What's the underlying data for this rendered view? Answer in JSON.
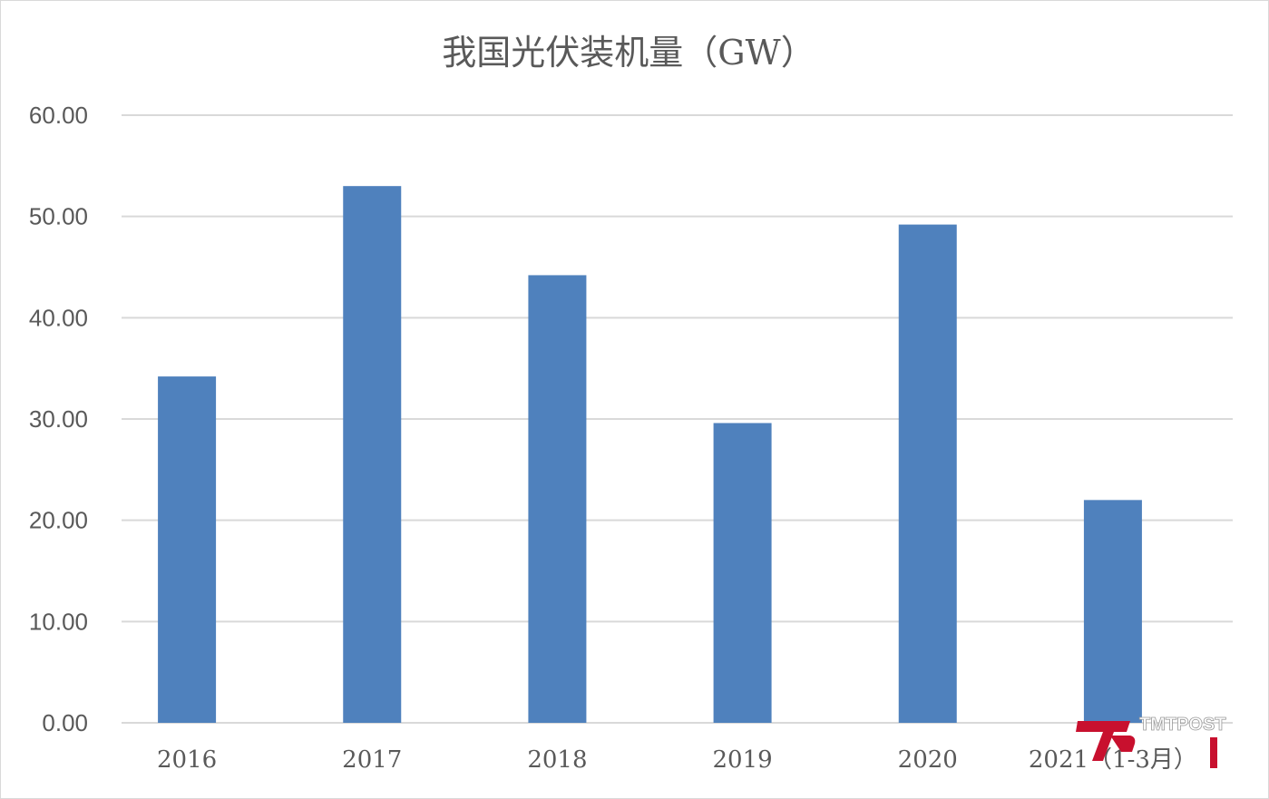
{
  "chart_data": {
    "type": "bar",
    "title": "我国光伏装机量（GW）",
    "xlabel": "",
    "ylabel": "",
    "categories": [
      "2016",
      "2017",
      "2018",
      "2019",
      "2020",
      "2021（1-3月）"
    ],
    "values": [
      34.2,
      53.0,
      44.2,
      29.6,
      49.2,
      22.0
    ],
    "ylim": [
      0,
      60
    ],
    "yticks": [
      "0.00",
      "10.00",
      "20.00",
      "30.00",
      "40.00",
      "50.00",
      "60.00"
    ],
    "grid": true,
    "legend": "none",
    "bar_color": "#4f81bd",
    "grid_color": "#d9d9d9"
  },
  "watermark": {
    "text": "TMTPOST",
    "brand_color": "#c8102e"
  }
}
